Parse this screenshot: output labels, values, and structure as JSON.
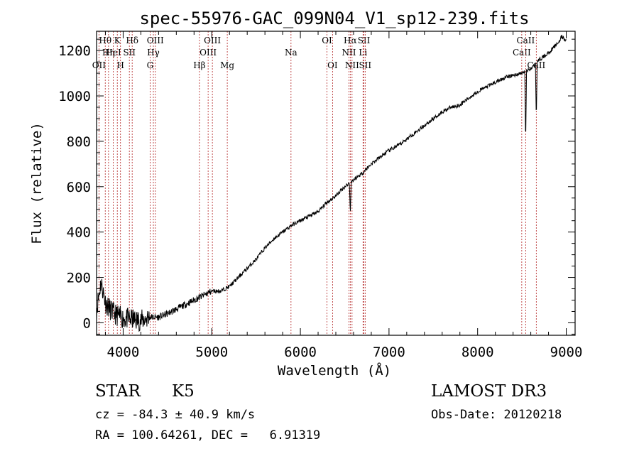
{
  "chart_data": {
    "type": "line",
    "title": "spec-55976-GAC_099N04_V1_sp12-239.fits",
    "xlabel": "Wavelength (Å)",
    "ylabel": "Flux (relative)",
    "xlim": [
      3700,
      9100
    ],
    "ylim": [
      -55,
      1285
    ],
    "xticks": [
      4000,
      5000,
      6000,
      7000,
      8000,
      9000
    ],
    "yticks": [
      0,
      200,
      400,
      600,
      800,
      1000,
      1200
    ],
    "grid": false,
    "series": [
      {
        "name": "spectrum",
        "x": [
          3700,
          3750,
          3800,
          3850,
          3900,
          3950,
          4000,
          4100,
          4200,
          4300,
          4400,
          4500,
          4600,
          4700,
          4800,
          4900,
          5000,
          5100,
          5200,
          5300,
          5400,
          5500,
          5600,
          5700,
          5800,
          5900,
          6000,
          6100,
          6200,
          6300,
          6400,
          6500,
          6600,
          6700,
          6800,
          6900,
          7000,
          7100,
          7200,
          7300,
          7400,
          7500,
          7600,
          7700,
          7800,
          7900,
          8000,
          8100,
          8200,
          8300,
          8400,
          8500,
          8600,
          8700,
          8800,
          8900,
          8950,
          9000
        ],
        "y": [
          60,
          180,
          90,
          60,
          40,
          30,
          20,
          15,
          10,
          25,
          25,
          40,
          60,
          80,
          100,
          120,
          140,
          140,
          160,
          200,
          240,
          280,
          330,
          370,
          400,
          430,
          450,
          470,
          490,
          530,
          560,
          600,
          630,
          660,
          700,
          730,
          760,
          780,
          810,
          840,
          870,
          900,
          930,
          950,
          960,
          990,
          1020,
          1040,
          1060,
          1080,
          1090,
          1100,
          1120,
          1160,
          1190,
          1230,
          1260,
          1240
        ]
      }
    ],
    "dips": [
      {
        "x": 8542,
        "y": 780
      },
      {
        "x": 8662,
        "y": 890
      },
      {
        "x": 6563,
        "y": 480
      }
    ],
    "lines": [
      {
        "x": 3727,
        "label": "OII",
        "row": 3
      },
      {
        "x": 3798,
        "label": "Hθ",
        "row": 1
      },
      {
        "x": 3835,
        "label": "Hη",
        "row": 2
      },
      {
        "x": 3889,
        "label": "HeI",
        "row": 2
      },
      {
        "x": 3934,
        "label": "K",
        "row": 1
      },
      {
        "x": 3970,
        "label": "H",
        "row": 3
      },
      {
        "x": 4070,
        "label": "SII",
        "row": 2
      },
      {
        "x": 4102,
        "label": "Hδ",
        "row": 1
      },
      {
        "x": 4304,
        "label": "G",
        "row": 3
      },
      {
        "x": 4341,
        "label": "Hγ",
        "row": 2
      },
      {
        "x": 4363,
        "label": "OIII",
        "row": 1
      },
      {
        "x": 4861,
        "label": "Hβ",
        "row": 3
      },
      {
        "x": 4959,
        "label": "OIII",
        "row": 2
      },
      {
        "x": 5007,
        "label": "OIII",
        "row": 1
      },
      {
        "x": 5175,
        "label": "Mg",
        "row": 3
      },
      {
        "x": 5894,
        "label": "Na",
        "row": 2
      },
      {
        "x": 6300,
        "label": "OI",
        "row": 1
      },
      {
        "x": 6363,
        "label": "OI",
        "row": 3
      },
      {
        "x": 6548,
        "label": "NII",
        "row": 2
      },
      {
        "x": 6563,
        "label": "Hα",
        "row": 1
      },
      {
        "x": 6583,
        "label": "NII",
        "row": 3
      },
      {
        "x": 6707,
        "label": "Li",
        "row": 2
      },
      {
        "x": 6717,
        "label": "SII",
        "row": 1
      },
      {
        "x": 6731,
        "label": "SII",
        "row": 3
      },
      {
        "x": 8498,
        "label": "CaII",
        "row": 2
      },
      {
        "x": 8542,
        "label": "CaII",
        "row": 1
      },
      {
        "x": 8662,
        "label": "CaII",
        "row": 3
      }
    ]
  },
  "footer": {
    "object_class": "STAR",
    "subclass": "K5",
    "survey": "LAMOST DR3",
    "redshift": "cz = -84.3 ± 40.9 km/s",
    "obs_date": "Obs-Date: 20120218",
    "coords": "RA = 100.64261, DEC =   6.91319"
  }
}
